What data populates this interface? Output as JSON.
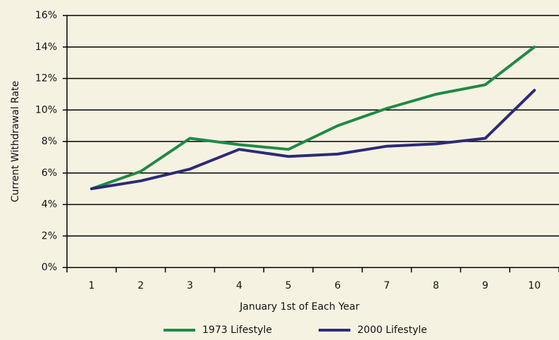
{
  "chart_data": {
    "type": "line",
    "xlabel": "January 1st of Each Year",
    "ylabel": "Current Withdrawal Rate",
    "categories": [
      "1",
      "2",
      "3",
      "4",
      "5",
      "6",
      "7",
      "8",
      "9",
      "10"
    ],
    "series": [
      {
        "name": "1973 Lifestyle",
        "color": "#1e8a46",
        "values": [
          5.0,
          6.1,
          8.2,
          7.8,
          7.5,
          9.0,
          10.1,
          11.0,
          11.6,
          14.0
        ]
      },
      {
        "name": "2000 Lifestyle",
        "color": "#2c2a7a",
        "values": [
          5.0,
          5.5,
          6.25,
          7.5,
          7.05,
          7.2,
          7.7,
          7.85,
          8.2,
          11.25
        ]
      }
    ],
    "ylim": [
      0,
      16
    ],
    "yticks": [
      {
        "value": 0,
        "label": "0%"
      },
      {
        "value": 2,
        "label": "2%"
      },
      {
        "value": 4,
        "label": "4%"
      },
      {
        "value": 6,
        "label": "6%"
      },
      {
        "value": 8,
        "label": "8%"
      },
      {
        "value": 10,
        "label": "10%"
      },
      {
        "value": 12,
        "label": "12%"
      },
      {
        "value": 14,
        "label": "14%"
      },
      {
        "value": 16,
        "label": "16%"
      }
    ],
    "grid": true,
    "legend": "bottom"
  }
}
